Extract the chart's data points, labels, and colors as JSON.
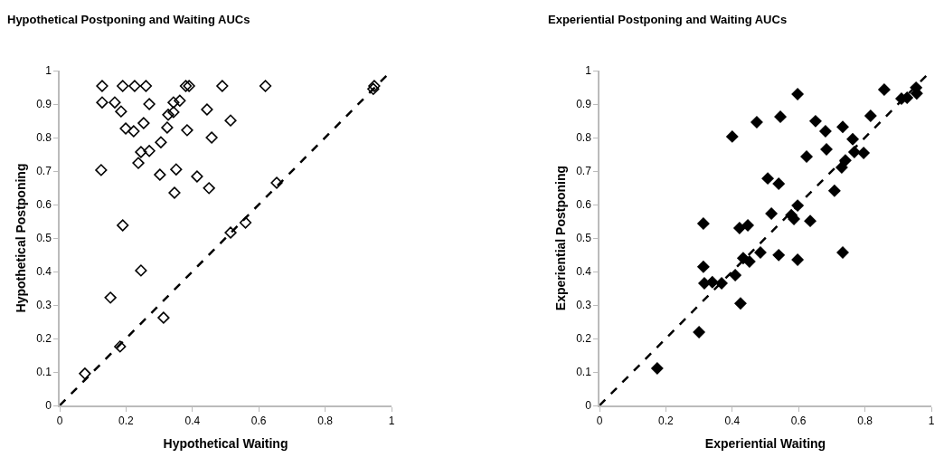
{
  "chart_data": [
    {
      "type": "scatter",
      "title": "Hypothetical Postponing and Waiting AUCs",
      "xlabel": "Hypothetical Waiting",
      "ylabel": "Hypothetical Postponing",
      "xlim": [
        0,
        1
      ],
      "ylim": [
        0,
        1
      ],
      "xticks": [
        0,
        0.2,
        0.4,
        0.6,
        0.8,
        1
      ],
      "yticks": [
        0,
        0.1,
        0.2,
        0.3,
        0.4,
        0.5,
        0.6,
        0.7,
        0.8,
        0.9,
        1
      ],
      "series": [
        {
          "marker": "diamond-open",
          "color": "#000000",
          "x": [
            0.128,
            0.19,
            0.226,
            0.26,
            0.38,
            0.39,
            0.49,
            0.62,
            0.948,
            0.945,
            0.128,
            0.166,
            0.185,
            0.27,
            0.343,
            0.362,
            0.444,
            0.515,
            0.327,
            0.343,
            0.324,
            0.253,
            0.199,
            0.223,
            0.384,
            0.458,
            0.305,
            0.27,
            0.245,
            0.237,
            0.125,
            0.302,
            0.351,
            0.414,
            0.45,
            0.346,
            0.19,
            0.515,
            0.56,
            0.654,
            0.245,
            0.153,
            0.313,
            0.182,
            0.076
          ],
          "values": [
            0.954,
            0.954,
            0.954,
            0.954,
            0.954,
            0.954,
            0.954,
            0.954,
            0.954,
            0.945,
            0.905,
            0.905,
            0.878,
            0.9,
            0.905,
            0.91,
            0.884,
            0.851,
            0.868,
            0.876,
            0.83,
            0.843,
            0.827,
            0.819,
            0.822,
            0.8,
            0.786,
            0.76,
            0.757,
            0.724,
            0.703,
            0.689,
            0.705,
            0.684,
            0.649,
            0.635,
            0.538,
            0.516,
            0.546,
            0.665,
            0.403,
            0.322,
            0.262,
            0.176,
            0.095
          ]
        },
        {
          "type": "line",
          "marker": "none",
          "line_style": "dashed",
          "color": "#000000",
          "x": [
            0,
            1
          ],
          "values": [
            0,
            1
          ]
        }
      ]
    },
    {
      "type": "scatter",
      "title": "Experiential Postponing and Waiting AUCs",
      "xlabel": "Experiential Waiting",
      "ylabel": "Experiential Postponing",
      "xlim": [
        0,
        1
      ],
      "ylim": [
        0,
        1
      ],
      "xticks": [
        0,
        0.2,
        0.4,
        0.6,
        0.8,
        1
      ],
      "yticks": [
        0,
        0.1,
        0.2,
        0.3,
        0.4,
        0.5,
        0.6,
        0.7,
        0.8,
        0.9,
        1
      ],
      "series": [
        {
          "marker": "diamond",
          "color": "#000000",
          "x": [
            0.597,
            0.858,
            0.91,
            0.927,
            0.954,
            0.956,
            0.817,
            0.474,
            0.545,
            0.651,
            0.681,
            0.733,
            0.4,
            0.763,
            0.768,
            0.796,
            0.684,
            0.624,
            0.741,
            0.73,
            0.507,
            0.54,
            0.708,
            0.597,
            0.578,
            0.586,
            0.518,
            0.635,
            0.313,
            0.422,
            0.447,
            0.313,
            0.316,
            0.34,
            0.368,
            0.409,
            0.425,
            0.433,
            0.452,
            0.485,
            0.54,
            0.597,
            0.733,
            0.3,
            0.174
          ],
          "values": [
            0.93,
            0.943,
            0.916,
            0.919,
            0.949,
            0.932,
            0.865,
            0.846,
            0.862,
            0.849,
            0.819,
            0.832,
            0.803,
            0.795,
            0.757,
            0.754,
            0.765,
            0.743,
            0.732,
            0.711,
            0.678,
            0.662,
            0.641,
            0.597,
            0.568,
            0.557,
            0.573,
            0.551,
            0.543,
            0.53,
            0.538,
            0.414,
            0.365,
            0.368,
            0.365,
            0.389,
            0.305,
            0.44,
            0.43,
            0.457,
            0.449,
            0.435,
            0.457,
            0.219,
            0.111
          ]
        },
        {
          "type": "line",
          "marker": "none",
          "line_style": "dashed",
          "color": "#000000",
          "x": [
            0,
            1
          ],
          "values": [
            0,
            1
          ]
        }
      ]
    }
  ]
}
